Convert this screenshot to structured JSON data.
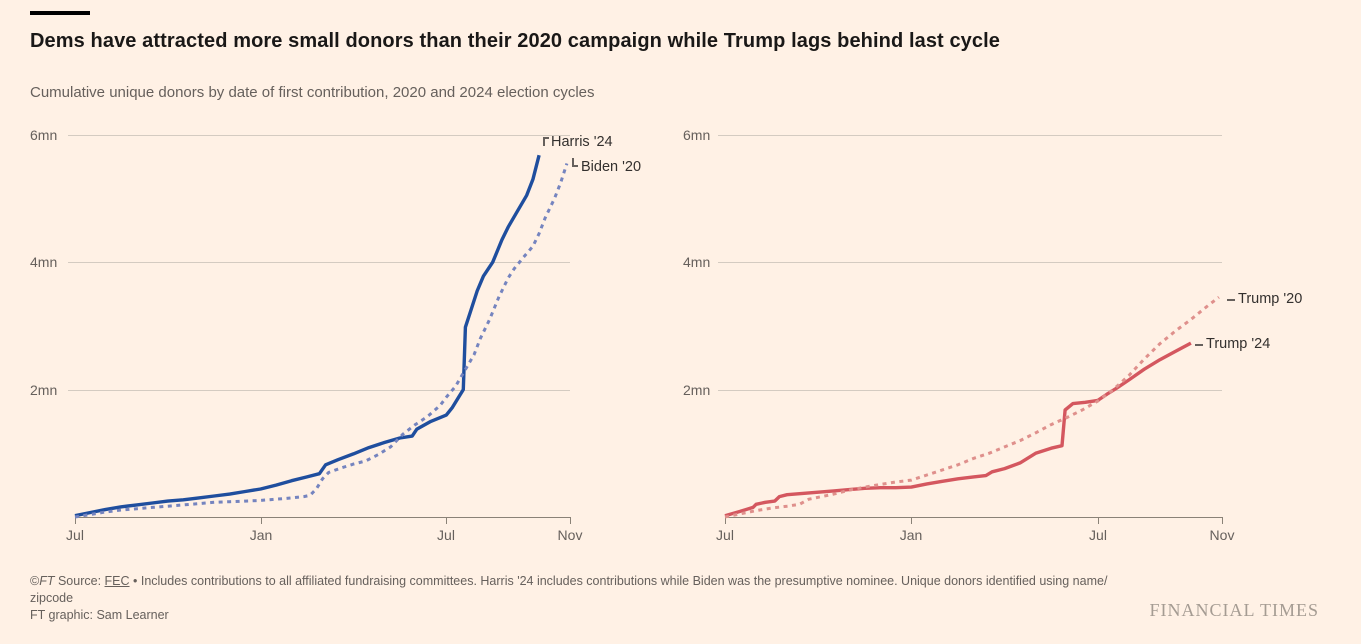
{
  "page": {
    "background_color": "#fff1e5"
  },
  "header": {
    "title": "Dems have attracted more small donors than their 2020 campaign while Trump lags behind last cycle",
    "subtitle": "Cumulative unique donors by date of first contribution, 2020 and 2024 election cycles"
  },
  "chart_data": [
    {
      "type": "line",
      "panel": "left",
      "description": "Democratic campaigns: cumulative unique donors in millions, by months since the July before the election year",
      "x": {
        "tick_labels": [
          "Jul",
          "Jan",
          "Jul",
          "Nov"
        ],
        "tick_months_from_start": [
          0,
          6,
          12,
          16
        ],
        "range_months": [
          0,
          16
        ]
      },
      "y": {
        "unit": "millions of unique donors",
        "tick_labels": [
          "2mn",
          "4mn",
          "6mn"
        ],
        "tick_values_mn": [
          2,
          4,
          6
        ],
        "range_mn": [
          0,
          6.4
        ],
        "gridlines": true
      },
      "series": [
        {
          "name": "Harris '24",
          "label": "Harris '24",
          "style": "solid",
          "color": "#1f4e9e",
          "points": [
            [
              0,
              0.02
            ],
            [
              0.5,
              0.07
            ],
            [
              1,
              0.12
            ],
            [
              1.5,
              0.16
            ],
            [
              2,
              0.19
            ],
            [
              2.5,
              0.22
            ],
            [
              3,
              0.25
            ],
            [
              3.5,
              0.27
            ],
            [
              4,
              0.3
            ],
            [
              4.5,
              0.33
            ],
            [
              5,
              0.36
            ],
            [
              5.5,
              0.4
            ],
            [
              6,
              0.44
            ],
            [
              6.5,
              0.5
            ],
            [
              7,
              0.57
            ],
            [
              7.5,
              0.63
            ],
            [
              7.9,
              0.68
            ],
            [
              8.1,
              0.82
            ],
            [
              8.5,
              0.9
            ],
            [
              9,
              0.99
            ],
            [
              9.5,
              1.09
            ],
            [
              10,
              1.17
            ],
            [
              10.5,
              1.24
            ],
            [
              10.9,
              1.27
            ],
            [
              11.05,
              1.38
            ],
            [
              11.5,
              1.5
            ],
            [
              12,
              1.6
            ],
            [
              12.2,
              1.72
            ],
            [
              12.4,
              1.88
            ],
            [
              12.55,
              2.0
            ],
            [
              12.62,
              2.98
            ],
            [
              12.8,
              3.25
            ],
            [
              13,
              3.55
            ],
            [
              13.2,
              3.78
            ],
            [
              13.5,
              4.0
            ],
            [
              13.8,
              4.35
            ],
            [
              14,
              4.55
            ],
            [
              14.3,
              4.8
            ],
            [
              14.6,
              5.05
            ],
            [
              14.8,
              5.3
            ],
            [
              15,
              5.68
            ]
          ]
        },
        {
          "name": "Biden '20",
          "label": "Biden '20",
          "style": "dashed",
          "color": "#7584bf",
          "points": [
            [
              0,
              0.0
            ],
            [
              0.5,
              0.04
            ],
            [
              1,
              0.08
            ],
            [
              1.5,
              0.11
            ],
            [
              2,
              0.13
            ],
            [
              2.5,
              0.15
            ],
            [
              3,
              0.17
            ],
            [
              3.5,
              0.19
            ],
            [
              4,
              0.21
            ],
            [
              4.5,
              0.23
            ],
            [
              5,
              0.24
            ],
            [
              5.5,
              0.25
            ],
            [
              6,
              0.26
            ],
            [
              6.5,
              0.28
            ],
            [
              7,
              0.3
            ],
            [
              7.4,
              0.32
            ],
            [
              7.6,
              0.34
            ],
            [
              7.8,
              0.44
            ],
            [
              8,
              0.6
            ],
            [
              8.2,
              0.7
            ],
            [
              8.6,
              0.77
            ],
            [
              9,
              0.83
            ],
            [
              9.4,
              0.88
            ],
            [
              9.8,
              0.98
            ],
            [
              10.2,
              1.1
            ],
            [
              10.6,
              1.3
            ],
            [
              11,
              1.45
            ],
            [
              11.4,
              1.58
            ],
            [
              11.8,
              1.75
            ],
            [
              12,
              1.88
            ],
            [
              12.3,
              2.05
            ],
            [
              12.6,
              2.3
            ],
            [
              12.9,
              2.55
            ],
            [
              13.1,
              2.8
            ],
            [
              13.4,
              3.1
            ],
            [
              13.7,
              3.45
            ],
            [
              14,
              3.75
            ],
            [
              14.2,
              3.9
            ],
            [
              14.5,
              4.08
            ],
            [
              14.8,
              4.25
            ],
            [
              15,
              4.45
            ],
            [
              15.2,
              4.7
            ],
            [
              15.5,
              5.0
            ],
            [
              15.7,
              5.25
            ],
            [
              15.9,
              5.55
            ]
          ]
        }
      ]
    },
    {
      "type": "line",
      "panel": "right",
      "description": "Trump campaigns: cumulative unique donors in millions, by months since the July before the election year",
      "x": {
        "tick_labels": [
          "Jul",
          "Jan",
          "Jul",
          "Nov"
        ],
        "tick_months_from_start": [
          0,
          6,
          12,
          16
        ],
        "range_months": [
          0,
          16
        ]
      },
      "y": {
        "unit": "millions of unique donors",
        "tick_labels": [
          "2mn",
          "4mn",
          "6mn"
        ],
        "tick_values_mn": [
          2,
          4,
          6
        ],
        "range_mn": [
          0,
          6.4
        ],
        "gridlines": true
      },
      "series": [
        {
          "name": "Trump '24",
          "label": "Trump '24",
          "style": "solid",
          "color": "#d4575f",
          "points": [
            [
              0,
              0.02
            ],
            [
              0.5,
              0.09
            ],
            [
              0.9,
              0.15
            ],
            [
              1.0,
              0.2
            ],
            [
              1.3,
              0.23
            ],
            [
              1.6,
              0.25
            ],
            [
              1.75,
              0.32
            ],
            [
              2,
              0.35
            ],
            [
              2.5,
              0.37
            ],
            [
              3,
              0.39
            ],
            [
              3.5,
              0.41
            ],
            [
              4,
              0.43
            ],
            [
              4.5,
              0.45
            ],
            [
              5,
              0.46
            ],
            [
              5.5,
              0.46
            ],
            [
              6,
              0.47
            ],
            [
              6.5,
              0.52
            ],
            [
              7,
              0.56
            ],
            [
              7.5,
              0.6
            ],
            [
              8,
              0.63
            ],
            [
              8.4,
              0.65
            ],
            [
              8.6,
              0.71
            ],
            [
              9,
              0.76
            ],
            [
              9.5,
              0.85
            ],
            [
              10,
              1.0
            ],
            [
              10.5,
              1.08
            ],
            [
              10.85,
              1.12
            ],
            [
              10.95,
              1.68
            ],
            [
              11.2,
              1.78
            ],
            [
              11.6,
              1.8
            ],
            [
              12,
              1.83
            ],
            [
              12.3,
              1.93
            ],
            [
              12.6,
              2.02
            ],
            [
              13,
              2.15
            ],
            [
              13.5,
              2.32
            ],
            [
              14,
              2.47
            ],
            [
              14.5,
              2.6
            ],
            [
              15,
              2.73
            ]
          ]
        },
        {
          "name": "Trump '20",
          "label": "Trump '20",
          "style": "dashed",
          "color": "#df908c",
          "points": [
            [
              0,
              0.0
            ],
            [
              0.5,
              0.05
            ],
            [
              1,
              0.1
            ],
            [
              1.5,
              0.14
            ],
            [
              2,
              0.17
            ],
            [
              2.4,
              0.2
            ],
            [
              2.7,
              0.28
            ],
            [
              3,
              0.31
            ],
            [
              3.5,
              0.36
            ],
            [
              4,
              0.42
            ],
            [
              4.5,
              0.47
            ],
            [
              5,
              0.51
            ],
            [
              5.5,
              0.55
            ],
            [
              6,
              0.58
            ],
            [
              6.5,
              0.66
            ],
            [
              7,
              0.74
            ],
            [
              7.5,
              0.82
            ],
            [
              8,
              0.92
            ],
            [
              8.5,
              1.0
            ],
            [
              9,
              1.1
            ],
            [
              9.5,
              1.2
            ],
            [
              10,
              1.32
            ],
            [
              10.5,
              1.45
            ],
            [
              11,
              1.56
            ],
            [
              11.5,
              1.68
            ],
            [
              12,
              1.82
            ],
            [
              12.5,
              2.0
            ],
            [
              13,
              2.22
            ],
            [
              13.5,
              2.48
            ],
            [
              14,
              2.72
            ],
            [
              14.5,
              2.92
            ],
            [
              15,
              3.1
            ],
            [
              15.5,
              3.3
            ],
            [
              15.9,
              3.45
            ]
          ]
        }
      ]
    }
  ],
  "footer": {
    "copyright_prefix": "©",
    "copyright_ft": "FT",
    "source_label": " Source: ",
    "source_link": "FEC",
    "source_note": " • Includes contributions to all affiliated fundraising committees. Harris '24 includes contributions while Biden was the presumptive nominee. Unique donors identified using name/",
    "source_note_wrap": "zipcode",
    "credit": "FT graphic: Sam Learner"
  },
  "branding": {
    "logo_text": "FINANCIAL TIMES"
  }
}
